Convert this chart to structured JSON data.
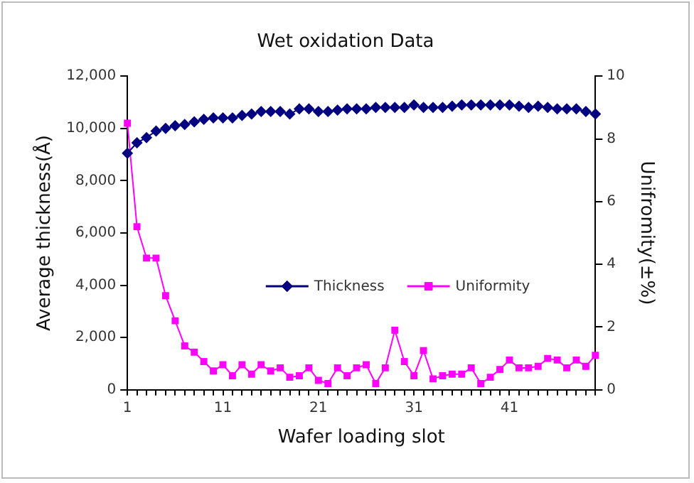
{
  "chart_data": {
    "type": "line",
    "title": "Wet oxidation Data",
    "xlabel": "Wafer loading slot",
    "ylabel": "Average thickness(Å)",
    "y2label": "Unifromity(±%)",
    "categories": [
      "1",
      null,
      null,
      null,
      null,
      null,
      null,
      null,
      null,
      null,
      "11",
      null,
      null,
      null,
      null,
      null,
      null,
      null,
      null,
      null,
      "21",
      null,
      null,
      null,
      null,
      null,
      null,
      null,
      null,
      null,
      "31",
      null,
      null,
      null,
      null,
      null,
      null,
      null,
      null,
      null,
      "41",
      null,
      null,
      null,
      null,
      null,
      null,
      null,
      null,
      null
    ],
    "series": [
      {
        "name": "Thickness",
        "color": "#000080",
        "marker": "diamond",
        "values": [
          9050,
          9450,
          9650,
          9900,
          10000,
          10100,
          10150,
          10250,
          10350,
          10400,
          10400,
          10400,
          10500,
          10550,
          10650,
          10650,
          10650,
          10550,
          10750,
          10750,
          10650,
          10650,
          10700,
          10750,
          10750,
          10750,
          10800,
          10800,
          10800,
          10800,
          10900,
          10800,
          10800,
          10800,
          10850,
          10900,
          10900,
          10900,
          10900,
          10900,
          10900,
          10850,
          10800,
          10850,
          10800,
          10750,
          10750,
          10750,
          10650,
          10550
        ]
      },
      {
        "name": "Uniformity",
        "color": "#ff00ff",
        "marker": "square",
        "axis": "y2",
        "values": [
          8.5,
          5.2,
          4.2,
          4.2,
          3.0,
          2.2,
          1.4,
          1.2,
          0.9,
          0.6,
          0.8,
          0.45,
          0.8,
          0.5,
          0.8,
          0.6,
          0.7,
          0.4,
          0.45,
          0.7,
          0.3,
          0.2,
          0.7,
          0.45,
          0.7,
          0.8,
          0.2,
          0.7,
          1.9,
          0.9,
          0.45,
          1.25,
          0.35,
          0.45,
          0.5,
          0.5,
          0.7,
          0.2,
          0.4,
          0.65,
          0.95,
          0.7,
          0.7,
          0.75,
          1.0,
          0.95,
          0.7,
          0.95,
          0.75,
          1.1
        ]
      }
    ],
    "ylim": [
      0,
      12000
    ],
    "yticks": [
      {
        "value": 0,
        "label": "0"
      },
      {
        "value": 2000,
        "label": "2,000"
      },
      {
        "value": 4000,
        "label": "4,000"
      },
      {
        "value": 6000,
        "label": "6,000"
      },
      {
        "value": 8000,
        "label": "8,000"
      },
      {
        "value": 10000,
        "label": "10,000"
      },
      {
        "value": 12000,
        "label": "12,000"
      }
    ],
    "y2lim": [
      0,
      10
    ],
    "y2ticks": [
      0,
      2,
      4,
      6,
      8,
      10
    ],
    "grid": false,
    "legend": "bottom right",
    "line_style": "solid"
  }
}
